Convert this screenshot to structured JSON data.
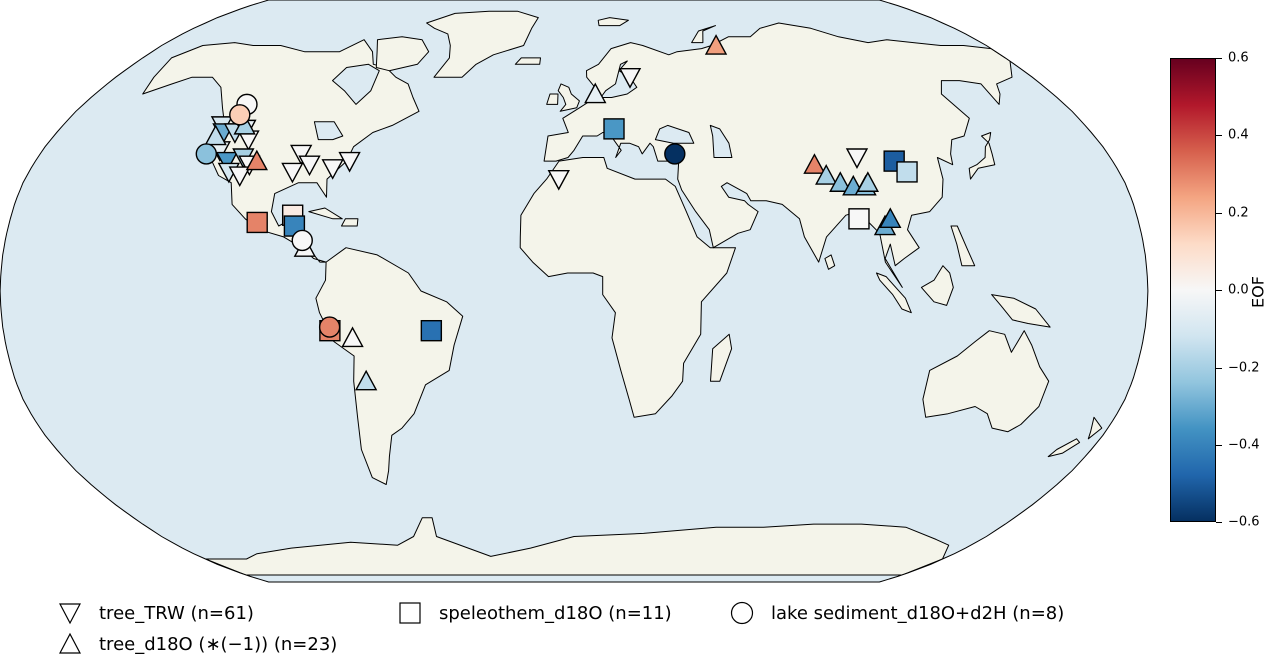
{
  "colorbar": {
    "label": "EOF",
    "ticks": [
      "0.6",
      "0.4",
      "0.2",
      "0.0",
      "−0.2",
      "−0.4",
      "−0.6"
    ],
    "vmin": -0.6,
    "vmax": 0.6,
    "colormap": "RdBu_r",
    "colors": [
      "#053061",
      "#2166ac",
      "#4393c3",
      "#92c5de",
      "#d1e5f0",
      "#f7f7f7",
      "#fddbc7",
      "#f4a582",
      "#d6604d",
      "#b2182b",
      "#67001f"
    ]
  },
  "map": {
    "projection": "Robinson",
    "ocean_color": "#dceaf2",
    "land_color": "#f4f4ea"
  },
  "legend": {
    "tree_trw": "tree_TRW (n=61)",
    "speleothem": "speleothem_d18O (n=11)",
    "lake": "lake sediment_d18O+d2H (n=8)",
    "tree_d18o": "tree_d18O (∗(−1)) (n=23)"
  },
  "proxies": [
    {
      "type": "tree_TRW",
      "lon": -124,
      "lat": 46,
      "value": -0.1
    },
    {
      "type": "tree_TRW",
      "lon": -122,
      "lat": 44,
      "value": -0.3
    },
    {
      "type": "tree_TRW",
      "lon": -118,
      "lat": 44,
      "value": -0.15
    },
    {
      "type": "tree_TRW",
      "lon": -115,
      "lat": 45,
      "value": -0.05
    },
    {
      "type": "tree_TRW",
      "lon": -112,
      "lat": 42,
      "value": 0.0
    },
    {
      "type": "tree_TRW",
      "lon": -120,
      "lat": 39,
      "value": -0.05
    },
    {
      "type": "tree_TRW",
      "lon": -116,
      "lat": 36,
      "value": -0.35
    },
    {
      "type": "tree_TRW",
      "lon": -111,
      "lat": 37,
      "value": -0.2
    },
    {
      "type": "tree_TRW",
      "lon": -108,
      "lat": 35,
      "value": 0.0
    },
    {
      "type": "tree_TRW",
      "lon": -114,
      "lat": 33,
      "value": -0.1
    },
    {
      "type": "tree_TRW",
      "lon": -110,
      "lat": 32,
      "value": 0.0
    },
    {
      "type": "tree_TRW",
      "lon": -92,
      "lat": 38,
      "value": 0.0
    },
    {
      "type": "tree_TRW",
      "lon": -88,
      "lat": 35,
      "value": 0.0
    },
    {
      "type": "tree_TRW",
      "lon": -93,
      "lat": 33,
      "value": 0.0
    },
    {
      "type": "tree_TRW",
      "lon": -80,
      "lat": 34,
      "value": 0.0
    },
    {
      "type": "tree_TRW",
      "lon": -75,
      "lat": 36,
      "value": 0.0
    },
    {
      "type": "tree_TRW",
      "lon": -5,
      "lat": 31,
      "value": 0.0
    },
    {
      "type": "tree_TRW",
      "lon": 22,
      "lat": 60,
      "value": 0.0
    },
    {
      "type": "tree_TRW",
      "lon": 95,
      "lat": 37,
      "value": 0.0
    },
    {
      "type": "tree_d18O",
      "lon": -124,
      "lat": 43,
      "value": -0.15
    },
    {
      "type": "tree_d18O",
      "lon": -116,
      "lat": 46,
      "value": -0.2
    },
    {
      "type": "tree_d18O",
      "lon": -106,
      "lat": 36,
      "value": 0.3
    },
    {
      "type": "tree_d18O",
      "lon": -85,
      "lat": 12,
      "value": 0.0
    },
    {
      "type": "tree_d18O",
      "lon": -70,
      "lat": -13,
      "value": 0.0
    },
    {
      "type": "tree_d18O",
      "lon": -67,
      "lat": -25,
      "value": -0.15
    },
    {
      "type": "tree_d18O",
      "lon": 8,
      "lat": 55,
      "value": -0.05
    },
    {
      "type": "tree_d18O",
      "lon": 62,
      "lat": 70,
      "value": 0.25
    },
    {
      "type": "tree_d18O",
      "lon": 80,
      "lat": 35,
      "value": 0.3
    },
    {
      "type": "tree_d18O",
      "lon": 83,
      "lat": 32,
      "value": -0.2
    },
    {
      "type": "tree_d18O",
      "lon": 87,
      "lat": 30,
      "value": -0.25
    },
    {
      "type": "tree_d18O",
      "lon": 91,
      "lat": 29,
      "value": -0.3
    },
    {
      "type": "tree_d18O",
      "lon": 95,
      "lat": 29,
      "value": -0.25
    },
    {
      "type": "tree_d18O",
      "lon": 96,
      "lat": 30,
      "value": -0.2
    },
    {
      "type": "tree_d18O",
      "lon": 99,
      "lat": 18,
      "value": -0.3
    },
    {
      "type": "tree_d18O",
      "lon": 101,
      "lat": 20,
      "value": -0.4
    },
    {
      "type": "speleothem_d18O",
      "lon": -101,
      "lat": 19,
      "value": 0.3
    },
    {
      "type": "speleothem_d18O",
      "lon": -90,
      "lat": 21,
      "value": 0.05
    },
    {
      "type": "speleothem_d18O",
      "lon": -89,
      "lat": 18,
      "value": -0.4
    },
    {
      "type": "speleothem_d18O",
      "lon": -77,
      "lat": -11,
      "value": 0.3
    },
    {
      "type": "speleothem_d18O",
      "lon": -45,
      "lat": -11,
      "value": -0.45
    },
    {
      "type": "speleothem_d18O",
      "lon": 14,
      "lat": 45,
      "value": -0.35
    },
    {
      "type": "speleothem_d18O",
      "lon": 107,
      "lat": 36,
      "value": -0.5
    },
    {
      "type": "speleothem_d18O",
      "lon": 110,
      "lat": 33,
      "value": -0.15
    },
    {
      "type": "speleothem_d18O",
      "lon": 91,
      "lat": 20,
      "value": 0.0
    },
    {
      "type": "lake",
      "lon": -120,
      "lat": 52,
      "value": 0.0
    },
    {
      "type": "lake",
      "lon": -120,
      "lat": 49,
      "value": 0.15
    },
    {
      "type": "lake",
      "lon": -124,
      "lat": 38,
      "value": -0.25
    },
    {
      "type": "lake",
      "lon": -86,
      "lat": 14,
      "value": 0.0
    },
    {
      "type": "lake",
      "lon": -77,
      "lat": -10,
      "value": 0.3
    },
    {
      "type": "lake",
      "lon": 34,
      "lat": 38,
      "value": -0.6
    }
  ]
}
